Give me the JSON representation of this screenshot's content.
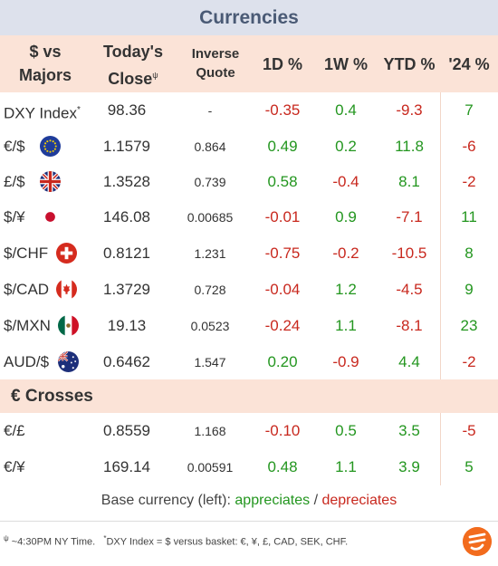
{
  "title": "Currencies",
  "header": {
    "col_pair_line1": "$ vs",
    "col_pair_line2": "Majors",
    "col_close_line1": "Today's",
    "col_close_line2": "Close",
    "col_close_mark": "ψ",
    "col_inv_line1": "Inverse",
    "col_inv_line2": "Quote",
    "col_1d": "1D %",
    "col_1w": "1W %",
    "col_ytd": "YTD %",
    "col_24": "'24 %"
  },
  "majors": [
    {
      "name": "DXY Index",
      "mark": "*",
      "flag": "",
      "close": "98.36",
      "inverse": "-",
      "d1": "-0.35",
      "w1": "0.4",
      "ytd": "-9.3",
      "y24": "7"
    },
    {
      "name": "€/$",
      "mark": "",
      "flag": "eu-flag-icon",
      "close": "1.1579",
      "inverse": "0.864",
      "d1": "0.49",
      "w1": "0.2",
      "ytd": "11.8",
      "y24": "-6"
    },
    {
      "name": "£/$",
      "mark": "",
      "flag": "uk-flag-icon",
      "close": "1.3528",
      "inverse": "0.739",
      "d1": "0.58",
      "w1": "-0.4",
      "ytd": "8.1",
      "y24": "-2"
    },
    {
      "name": "$/¥",
      "mark": "",
      "flag": "japan-flag-icon",
      "close": "146.08",
      "inverse": "0.00685",
      "d1": "-0.01",
      "w1": "0.9",
      "ytd": "-7.1",
      "y24": "11"
    },
    {
      "name": "$/CHF",
      "mark": "",
      "flag": "swiss-flag-icon",
      "close": "0.8121",
      "inverse": "1.231",
      "d1": "-0.75",
      "w1": "-0.2",
      "ytd": "-10.5",
      "y24": "8"
    },
    {
      "name": "$/CAD",
      "mark": "",
      "flag": "canada-flag-icon",
      "close": "1.3729",
      "inverse": "0.728",
      "d1": "-0.04",
      "w1": "1.2",
      "ytd": "-4.5",
      "y24": "9"
    },
    {
      "name": "$/MXN",
      "mark": "",
      "flag": "mexico-flag-icon",
      "close": "19.13",
      "inverse": "0.0523",
      "d1": "-0.24",
      "w1": "1.1",
      "ytd": "-8.1",
      "y24": "23"
    },
    {
      "name": "AUD/$",
      "mark": "",
      "flag": "australia-flag-icon",
      "close": "0.6462",
      "inverse": "1.547",
      "d1": "0.20",
      "w1": "-0.9",
      "ytd": "4.4",
      "y24": "-2"
    }
  ],
  "section_title": "€ Crosses",
  "crosses": [
    {
      "name": "€/£",
      "close": "0.8559",
      "inverse": "1.168",
      "d1": "-0.10",
      "w1": "0.5",
      "ytd": "3.5",
      "y24": "-5"
    },
    {
      "name": "€/¥",
      "close": "169.14",
      "inverse": "0.00591",
      "d1": "0.48",
      "w1": "1.1",
      "ytd": "3.9",
      "y24": "5"
    }
  ],
  "legend": {
    "prefix": "Base currency (left): ",
    "appreciates": "appreciates",
    "separator": " / ",
    "depreciates": "depreciates"
  },
  "footnote": {
    "mark1": "ψ",
    "text1": " ~4:30PM NY Time.",
    "mark2": "*",
    "text2": "DXY Index = $ versus basket: €, ¥, £, CAD, SEK, CHF."
  },
  "colors": {
    "positive": "#23961f",
    "negative": "#c8281e",
    "header_bg": "#fbe3d7",
    "title_bg": "#dde1ec",
    "title_text": "#4a5a75"
  },
  "logo_icon": "brand-logo-icon"
}
